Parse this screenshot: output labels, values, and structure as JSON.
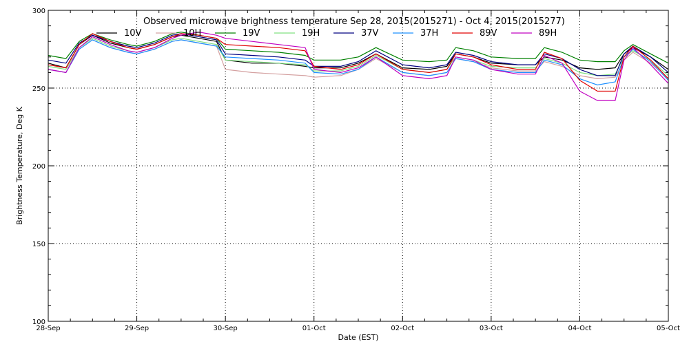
{
  "chart_data": {
    "type": "line",
    "title": "Observed microwave brightness temperature Sep 28, 2015(2015271) - Oct  4, 2015(2015277)",
    "xlabel": "Date (EST)",
    "ylabel": "Brightness Temperature, Deg K",
    "xlim": [
      0,
      7
    ],
    "ylim": [
      100,
      300
    ],
    "x_tick_labels": [
      "28-Sep",
      "29-Sep",
      "30-Sep",
      "01-Oct",
      "02-Oct",
      "03-Oct",
      "04-Oct",
      "05-Oct"
    ],
    "y_ticks": [
      100,
      150,
      200,
      250,
      300
    ],
    "grid": "dotted",
    "legend_position": "top",
    "series": [
      {
        "name": "10V",
        "color": "#000000",
        "x": [
          0,
          0.2,
          0.35,
          0.5,
          0.7,
          0.9,
          1.0,
          1.2,
          1.4,
          1.5,
          1.7,
          1.9,
          2.0,
          2.3,
          2.6,
          2.9,
          3.0,
          3.3,
          3.5,
          3.7,
          4.0,
          4.3,
          4.5,
          4.6,
          4.8,
          5.0,
          5.3,
          5.5,
          5.6,
          5.8,
          6.0,
          6.2,
          6.4,
          6.5,
          6.6,
          6.8,
          7.0
        ],
        "values": [
          266,
          263,
          278,
          284,
          279,
          276,
          275,
          278,
          283,
          284,
          282,
          280,
          268,
          266,
          266,
          264,
          263,
          263,
          266,
          272,
          263,
          262,
          264,
          272,
          270,
          266,
          265,
          265,
          270,
          268,
          263,
          262,
          263,
          272,
          276,
          270,
          262
        ]
      },
      {
        "name": "10H",
        "color": "#d4a0a0",
        "x": [
          0,
          0.2,
          0.35,
          0.5,
          0.7,
          0.9,
          1.0,
          1.2,
          1.4,
          1.5,
          1.7,
          1.9,
          2.0,
          2.3,
          2.6,
          2.9,
          3.0,
          3.3,
          3.5,
          3.7,
          4.0,
          4.3,
          4.5,
          4.6,
          4.8,
          5.0,
          5.3,
          5.5,
          5.6,
          5.8,
          6.0,
          6.2,
          6.4,
          6.5,
          6.6,
          6.8,
          7.0
        ],
        "values": [
          262,
          260,
          275,
          281,
          276,
          273,
          272,
          275,
          280,
          281,
          279,
          277,
          262,
          260,
          259,
          258,
          257,
          258,
          262,
          269,
          260,
          258,
          260,
          269,
          267,
          263,
          261,
          261,
          267,
          264,
          258,
          256,
          257,
          268,
          273,
          266,
          256
        ]
      },
      {
        "name": "19V",
        "color": "#008000",
        "x": [
          0,
          0.2,
          0.35,
          0.5,
          0.7,
          0.9,
          1.0,
          1.2,
          1.4,
          1.5,
          1.7,
          1.9,
          2.0,
          2.3,
          2.6,
          2.9,
          3.0,
          3.3,
          3.5,
          3.7,
          4.0,
          4.3,
          4.5,
          4.6,
          4.8,
          5.0,
          5.3,
          5.5,
          5.6,
          5.8,
          6.0,
          6.2,
          6.4,
          6.5,
          6.6,
          6.8,
          7.0
        ],
        "values": [
          271,
          269,
          280,
          285,
          281,
          278,
          277,
          280,
          285,
          286,
          284,
          282,
          275,
          274,
          273,
          271,
          268,
          268,
          270,
          276,
          268,
          267,
          268,
          276,
          274,
          270,
          269,
          269,
          276,
          273,
          268,
          267,
          267,
          274,
          278,
          272,
          266
        ]
      },
      {
        "name": "19H",
        "color": "#80e080",
        "x": [
          0,
          0.2,
          0.35,
          0.5,
          0.7,
          0.9,
          1.0,
          1.2,
          1.4,
          1.5,
          1.7,
          1.9,
          2.0,
          2.3,
          2.6,
          2.9,
          3.0,
          3.3,
          3.5,
          3.7,
          4.0,
          4.3,
          4.5,
          4.6,
          4.8,
          5.0,
          5.3,
          5.5,
          5.6,
          5.8,
          6.0,
          6.2,
          6.4,
          6.5,
          6.6,
          6.8,
          7.0
        ],
        "values": [
          264,
          262,
          276,
          282,
          277,
          274,
          273,
          276,
          281,
          282,
          280,
          278,
          268,
          267,
          266,
          265,
          261,
          261,
          264,
          271,
          262,
          260,
          262,
          270,
          268,
          264,
          263,
          263,
          269,
          266,
          260,
          258,
          259,
          270,
          274,
          268,
          258
        ]
      },
      {
        "name": "37V",
        "color": "#000080",
        "x": [
          0,
          0.2,
          0.35,
          0.5,
          0.7,
          0.9,
          1.0,
          1.2,
          1.4,
          1.5,
          1.7,
          1.9,
          2.0,
          2.3,
          2.6,
          2.9,
          3.0,
          3.3,
          3.5,
          3.7,
          4.0,
          4.3,
          4.5,
          4.6,
          4.8,
          5.0,
          5.3,
          5.5,
          5.6,
          5.8,
          6.0,
          6.2,
          6.4,
          6.5,
          6.6,
          6.8,
          7.0
        ],
        "values": [
          268,
          266,
          279,
          284,
          280,
          277,
          276,
          279,
          284,
          285,
          283,
          281,
          272,
          271,
          270,
          268,
          264,
          264,
          267,
          274,
          265,
          263,
          265,
          273,
          271,
          267,
          265,
          265,
          272,
          269,
          262,
          258,
          258,
          272,
          277,
          270,
          260
        ]
      },
      {
        "name": "37H",
        "color": "#1e90ff",
        "x": [
          0,
          0.2,
          0.35,
          0.5,
          0.7,
          0.9,
          1.0,
          1.2,
          1.4,
          1.5,
          1.7,
          1.9,
          2.0,
          2.3,
          2.6,
          2.9,
          3.0,
          3.3,
          3.5,
          3.7,
          4.0,
          4.3,
          4.5,
          4.6,
          4.8,
          5.0,
          5.3,
          5.5,
          5.6,
          5.8,
          6.0,
          6.2,
          6.4,
          6.5,
          6.6,
          6.8,
          7.0
        ],
        "values": [
          262,
          260,
          275,
          281,
          276,
          273,
          272,
          275,
          280,
          281,
          279,
          277,
          270,
          269,
          268,
          266,
          260,
          259,
          262,
          270,
          260,
          258,
          260,
          269,
          267,
          262,
          260,
          260,
          268,
          265,
          256,
          252,
          254,
          270,
          275,
          267,
          255
        ]
      },
      {
        "name": "89V",
        "color": "#e00000",
        "x": [
          0,
          0.2,
          0.35,
          0.5,
          0.7,
          0.9,
          1.0,
          1.2,
          1.4,
          1.5,
          1.7,
          1.9,
          2.0,
          2.3,
          2.6,
          2.9,
          3.0,
          3.3,
          3.5,
          3.7,
          4.0,
          4.3,
          4.5,
          4.6,
          4.8,
          5.0,
          5.3,
          5.5,
          5.6,
          5.8,
          6.0,
          6.2,
          6.4,
          6.5,
          6.6,
          6.8,
          7.0
        ],
        "values": [
          265,
          263,
          278,
          285,
          280,
          276,
          275,
          278,
          283,
          285,
          284,
          282,
          278,
          277,
          276,
          274,
          264,
          262,
          265,
          272,
          262,
          260,
          262,
          272,
          270,
          265,
          262,
          262,
          273,
          269,
          255,
          248,
          248,
          270,
          277,
          268,
          256
        ]
      },
      {
        "name": "89H",
        "color": "#c000c0",
        "x": [
          0,
          0.2,
          0.35,
          0.5,
          0.7,
          0.9,
          1.0,
          1.2,
          1.4,
          1.5,
          1.7,
          1.9,
          2.0,
          2.3,
          2.6,
          2.9,
          3.0,
          3.3,
          3.5,
          3.7,
          4.0,
          4.3,
          4.5,
          4.6,
          4.8,
          5.0,
          5.3,
          5.5,
          5.6,
          5.8,
          6.0,
          6.2,
          6.4,
          6.5,
          6.6,
          6.8,
          7.0
        ],
        "values": [
          262,
          260,
          276,
          283,
          278,
          274,
          273,
          276,
          282,
          284,
          286,
          284,
          282,
          280,
          278,
          276,
          262,
          260,
          263,
          270,
          258,
          256,
          258,
          270,
          268,
          262,
          259,
          259,
          271,
          266,
          248,
          242,
          242,
          268,
          276,
          265,
          253
        ]
      }
    ]
  }
}
